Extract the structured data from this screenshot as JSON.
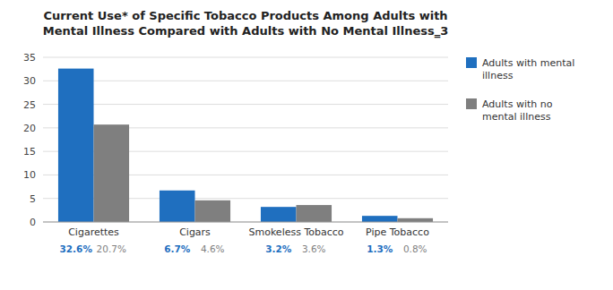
{
  "chart_data": {
    "type": "bar",
    "title": "Current Use* of Specific Tobacco Products Among Adults with\nMental Illness Compared with Adults with No Mental Illness‗3",
    "categories": [
      "Cigarettes",
      "Cigars",
      "Smokeless Tobacco",
      "Pipe Tobacco"
    ],
    "series": [
      {
        "name": "Adults with mental\nillness",
        "color": "#1F6FBF",
        "values": [
          32.6,
          6.7,
          3.2,
          1.3
        ],
        "value_labels": [
          "32.6%",
          "6.7%",
          "3.2%",
          "1.3%"
        ]
      },
      {
        "name": "Adults with no\nmental illness",
        "color": "#7F7F7F",
        "values": [
          20.7,
          4.6,
          3.6,
          0.8
        ],
        "value_labels": [
          "20.7%",
          "4.6%",
          "3.6%",
          "0.8%"
        ]
      }
    ],
    "ylim": [
      0,
      35
    ],
    "yticks": [
      0,
      5,
      10,
      15,
      20,
      25,
      30,
      35
    ],
    "grid": true,
    "legend": "right",
    "data_labels": true
  }
}
